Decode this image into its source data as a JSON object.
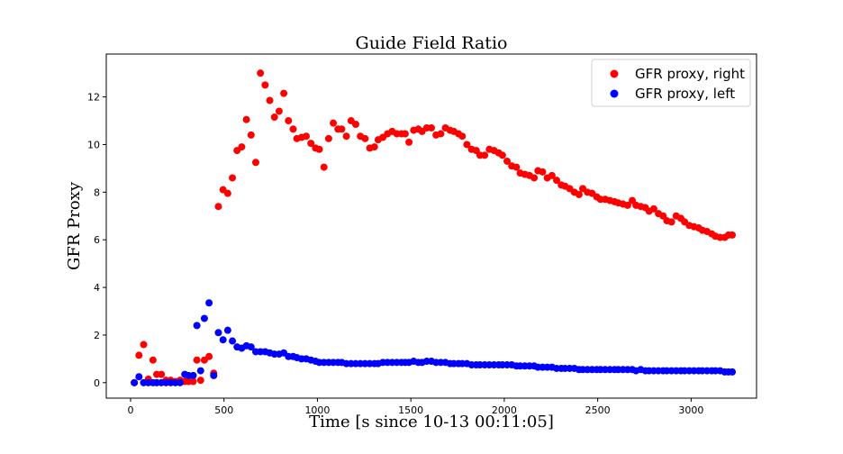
{
  "chart_data": {
    "type": "scatter",
    "title": "Guide Field Ratio",
    "xlabel": "Time [s since 10-13 00:11:05]",
    "ylabel": "GFR Proxy",
    "xlim": [
      -130,
      3350
    ],
    "ylim": [
      -0.65,
      13.8
    ],
    "xticks": [
      0,
      500,
      1000,
      1500,
      2000,
      2500,
      3000
    ],
    "yticks": [
      0,
      2,
      4,
      6,
      8,
      10,
      12
    ],
    "grid": false,
    "legend_position": "top-right",
    "series": [
      {
        "name": "GFR proxy, right",
        "color": "#ff0000",
        "points": [
          [
            20,
            0.0
          ],
          [
            45,
            1.15
          ],
          [
            70,
            1.6
          ],
          [
            95,
            0.15
          ],
          [
            120,
            0.95
          ],
          [
            140,
            0.35
          ],
          [
            165,
            0.35
          ],
          [
            190,
            0.1
          ],
          [
            215,
            0.1
          ],
          [
            240,
            0.05
          ],
          [
            265,
            0.1
          ],
          [
            290,
            0.05
          ],
          [
            310,
            0.05
          ],
          [
            335,
            0.05
          ],
          [
            355,
            0.95
          ],
          [
            375,
            0.1
          ],
          [
            395,
            0.95
          ],
          [
            420,
            1.1
          ],
          [
            445,
            0.4
          ],
          [
            470,
            7.4
          ],
          [
            495,
            8.1
          ],
          [
            520,
            7.95
          ],
          [
            545,
            8.6
          ],
          [
            570,
            9.75
          ],
          [
            595,
            9.9
          ],
          [
            620,
            11.05
          ],
          [
            645,
            10.4
          ],
          [
            670,
            9.25
          ],
          [
            695,
            13.0
          ],
          [
            720,
            12.5
          ],
          [
            745,
            11.85
          ],
          [
            770,
            11.15
          ],
          [
            795,
            11.4
          ],
          [
            820,
            12.15
          ],
          [
            845,
            11.0
          ],
          [
            870,
            10.65
          ],
          [
            890,
            10.25
          ],
          [
            915,
            10.3
          ],
          [
            940,
            10.35
          ],
          [
            965,
            10.05
          ],
          [
            990,
            9.85
          ],
          [
            1010,
            9.8
          ],
          [
            1035,
            9.05
          ],
          [
            1060,
            10.25
          ],
          [
            1085,
            10.9
          ],
          [
            1110,
            10.65
          ],
          [
            1130,
            10.65
          ],
          [
            1155,
            10.35
          ],
          [
            1180,
            11.0
          ],
          [
            1205,
            10.85
          ],
          [
            1230,
            10.35
          ],
          [
            1255,
            10.25
          ],
          [
            1280,
            9.85
          ],
          [
            1305,
            9.9
          ],
          [
            1325,
            10.2
          ],
          [
            1350,
            10.3
          ],
          [
            1375,
            10.45
          ],
          [
            1400,
            10.55
          ],
          [
            1425,
            10.45
          ],
          [
            1450,
            10.45
          ],
          [
            1470,
            10.45
          ],
          [
            1490,
            10.1
          ],
          [
            1515,
            10.6
          ],
          [
            1540,
            10.65
          ],
          [
            1560,
            10.55
          ],
          [
            1585,
            10.7
          ],
          [
            1610,
            10.7
          ],
          [
            1635,
            10.4
          ],
          [
            1660,
            10.45
          ],
          [
            1685,
            10.7
          ],
          [
            1710,
            10.6
          ],
          [
            1730,
            10.55
          ],
          [
            1755,
            10.45
          ],
          [
            1775,
            10.35
          ],
          [
            1800,
            10.0
          ],
          [
            1825,
            9.8
          ],
          [
            1850,
            9.75
          ],
          [
            1870,
            9.55
          ],
          [
            1895,
            9.55
          ],
          [
            1920,
            9.8
          ],
          [
            1945,
            9.75
          ],
          [
            1970,
            9.65
          ],
          [
            1990,
            9.55
          ],
          [
            2015,
            9.3
          ],
          [
            2040,
            9.1
          ],
          [
            2065,
            9.05
          ],
          [
            2085,
            8.8
          ],
          [
            2110,
            8.75
          ],
          [
            2135,
            8.7
          ],
          [
            2160,
            8.6
          ],
          [
            2180,
            8.9
          ],
          [
            2205,
            8.85
          ],
          [
            2230,
            8.6
          ],
          [
            2255,
            8.7
          ],
          [
            2280,
            8.5
          ],
          [
            2305,
            8.3
          ],
          [
            2325,
            8.25
          ],
          [
            2350,
            8.15
          ],
          [
            2375,
            8.0
          ],
          [
            2400,
            7.9
          ],
          [
            2420,
            8.15
          ],
          [
            2445,
            8.0
          ],
          [
            2470,
            7.95
          ],
          [
            2495,
            7.8
          ],
          [
            2515,
            7.7
          ],
          [
            2540,
            7.7
          ],
          [
            2565,
            7.65
          ],
          [
            2590,
            7.6
          ],
          [
            2610,
            7.55
          ],
          [
            2635,
            7.5
          ],
          [
            2660,
            7.45
          ],
          [
            2685,
            7.65
          ],
          [
            2705,
            7.45
          ],
          [
            2730,
            7.4
          ],
          [
            2755,
            7.35
          ],
          [
            2775,
            7.2
          ],
          [
            2800,
            7.3
          ],
          [
            2825,
            7.1
          ],
          [
            2850,
            7.0
          ],
          [
            2870,
            6.8
          ],
          [
            2895,
            6.75
          ],
          [
            2920,
            7.0
          ],
          [
            2945,
            6.9
          ],
          [
            2965,
            6.75
          ],
          [
            2990,
            6.6
          ],
          [
            3015,
            6.55
          ],
          [
            3040,
            6.5
          ],
          [
            3060,
            6.4
          ],
          [
            3085,
            6.35
          ],
          [
            3110,
            6.25
          ],
          [
            3130,
            6.15
          ],
          [
            3155,
            6.1
          ],
          [
            3180,
            6.1
          ],
          [
            3200,
            6.2
          ],
          [
            3220,
            6.2
          ]
        ]
      },
      {
        "name": "GFR proxy, left",
        "color": "#0000ff",
        "points": [
          [
            20,
            0.0
          ],
          [
            45,
            0.25
          ],
          [
            70,
            0.0
          ],
          [
            95,
            0.0
          ],
          [
            120,
            0.0
          ],
          [
            140,
            0.0
          ],
          [
            165,
            0.0
          ],
          [
            190,
            0.0
          ],
          [
            215,
            0.0
          ],
          [
            240,
            0.0
          ],
          [
            265,
            0.0
          ],
          [
            290,
            0.35
          ],
          [
            310,
            0.3
          ],
          [
            335,
            0.3
          ],
          [
            355,
            2.4
          ],
          [
            375,
            0.5
          ],
          [
            395,
            2.7
          ],
          [
            420,
            3.35
          ],
          [
            445,
            0.3
          ],
          [
            470,
            2.1
          ],
          [
            495,
            1.8
          ],
          [
            520,
            2.2
          ],
          [
            545,
            1.75
          ],
          [
            570,
            1.5
          ],
          [
            595,
            1.45
          ],
          [
            620,
            1.55
          ],
          [
            645,
            1.5
          ],
          [
            670,
            1.3
          ],
          [
            695,
            1.3
          ],
          [
            720,
            1.3
          ],
          [
            745,
            1.25
          ],
          [
            770,
            1.2
          ],
          [
            795,
            1.2
          ],
          [
            820,
            1.25
          ],
          [
            845,
            1.1
          ],
          [
            870,
            1.1
          ],
          [
            890,
            1.05
          ],
          [
            915,
            1.0
          ],
          [
            940,
            1.0
          ],
          [
            965,
            0.95
          ],
          [
            990,
            0.9
          ],
          [
            1010,
            0.85
          ],
          [
            1035,
            0.85
          ],
          [
            1060,
            0.85
          ],
          [
            1085,
            0.85
          ],
          [
            1110,
            0.85
          ],
          [
            1130,
            0.85
          ],
          [
            1155,
            0.8
          ],
          [
            1180,
            0.8
          ],
          [
            1205,
            0.8
          ],
          [
            1230,
            0.8
          ],
          [
            1255,
            0.8
          ],
          [
            1280,
            0.8
          ],
          [
            1305,
            0.8
          ],
          [
            1325,
            0.8
          ],
          [
            1350,
            0.85
          ],
          [
            1375,
            0.85
          ],
          [
            1400,
            0.85
          ],
          [
            1425,
            0.85
          ],
          [
            1450,
            0.85
          ],
          [
            1470,
            0.85
          ],
          [
            1490,
            0.85
          ],
          [
            1515,
            0.9
          ],
          [
            1540,
            0.85
          ],
          [
            1560,
            0.85
          ],
          [
            1585,
            0.9
          ],
          [
            1610,
            0.9
          ],
          [
            1635,
            0.85
          ],
          [
            1660,
            0.85
          ],
          [
            1685,
            0.85
          ],
          [
            1710,
            0.8
          ],
          [
            1730,
            0.8
          ],
          [
            1755,
            0.8
          ],
          [
            1775,
            0.8
          ],
          [
            1800,
            0.8
          ],
          [
            1825,
            0.75
          ],
          [
            1850,
            0.75
          ],
          [
            1870,
            0.75
          ],
          [
            1895,
            0.75
          ],
          [
            1920,
            0.75
          ],
          [
            1945,
            0.75
          ],
          [
            1970,
            0.75
          ],
          [
            1990,
            0.75
          ],
          [
            2015,
            0.75
          ],
          [
            2040,
            0.75
          ],
          [
            2065,
            0.7
          ],
          [
            2085,
            0.7
          ],
          [
            2110,
            0.7
          ],
          [
            2135,
            0.7
          ],
          [
            2160,
            0.7
          ],
          [
            2180,
            0.65
          ],
          [
            2205,
            0.65
          ],
          [
            2230,
            0.65
          ],
          [
            2255,
            0.65
          ],
          [
            2280,
            0.6
          ],
          [
            2305,
            0.6
          ],
          [
            2325,
            0.6
          ],
          [
            2350,
            0.6
          ],
          [
            2375,
            0.6
          ],
          [
            2400,
            0.55
          ],
          [
            2420,
            0.55
          ],
          [
            2445,
            0.55
          ],
          [
            2470,
            0.55
          ],
          [
            2495,
            0.55
          ],
          [
            2515,
            0.55
          ],
          [
            2540,
            0.55
          ],
          [
            2565,
            0.55
          ],
          [
            2590,
            0.55
          ],
          [
            2610,
            0.55
          ],
          [
            2635,
            0.55
          ],
          [
            2660,
            0.55
          ],
          [
            2685,
            0.55
          ],
          [
            2705,
            0.5
          ],
          [
            2730,
            0.55
          ],
          [
            2755,
            0.5
          ],
          [
            2775,
            0.5
          ],
          [
            2800,
            0.5
          ],
          [
            2825,
            0.5
          ],
          [
            2850,
            0.5
          ],
          [
            2870,
            0.5
          ],
          [
            2895,
            0.5
          ],
          [
            2920,
            0.5
          ],
          [
            2945,
            0.5
          ],
          [
            2965,
            0.5
          ],
          [
            2990,
            0.5
          ],
          [
            3015,
            0.5
          ],
          [
            3040,
            0.5
          ],
          [
            3060,
            0.5
          ],
          [
            3085,
            0.5
          ],
          [
            3110,
            0.5
          ],
          [
            3130,
            0.5
          ],
          [
            3155,
            0.5
          ],
          [
            3180,
            0.45
          ],
          [
            3200,
            0.45
          ],
          [
            3220,
            0.45
          ]
        ]
      }
    ]
  }
}
